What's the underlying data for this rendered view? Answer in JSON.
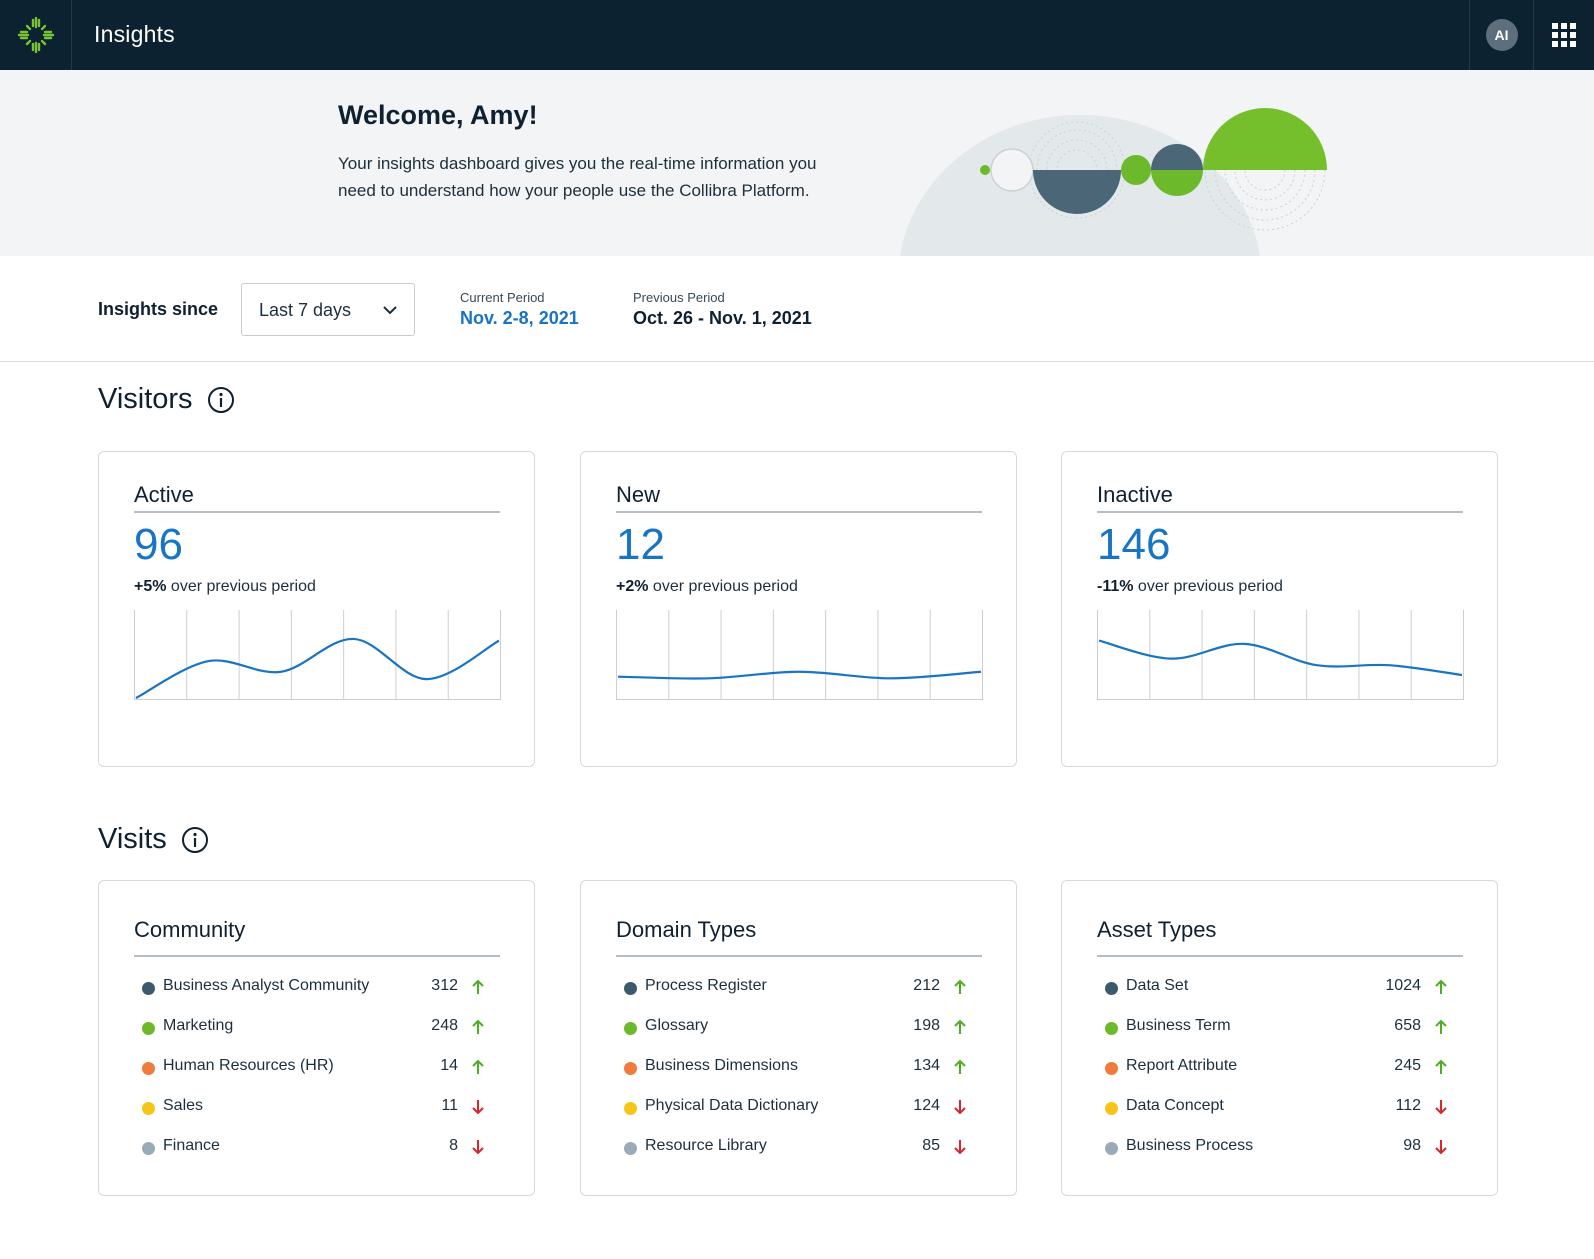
{
  "app": {
    "title": "Insights",
    "user_initials": "AI"
  },
  "banner": {
    "welcome": "Welcome, Amy!",
    "text": "Your insights dashboard gives you the real-time information you need to understand how your people use the Collibra Platform."
  },
  "filters": {
    "label": "Insights since",
    "period_select": "Last 7 days",
    "current_label": "Current Period",
    "current_value": "Nov. 2-8, 2021",
    "previous_label": "Previous Period",
    "previous_value": "Oct. 26 - Nov. 1, 2021"
  },
  "visitors": {
    "title": "Visitors",
    "cards": [
      {
        "title": "Active",
        "value": "96",
        "delta": "+5%",
        "delta_text": "over previous period"
      },
      {
        "title": "New",
        "value": "12",
        "delta": "+2%",
        "delta_text": "over previous period"
      },
      {
        "title": "Inactive",
        "value": "146",
        "delta": "-11%",
        "delta_text": "over previous period"
      }
    ]
  },
  "visits": {
    "title": "Visits",
    "cards": [
      {
        "title": "Community",
        "items": [
          {
            "label": "Business Analyst Community",
            "value": "312",
            "trend": "up",
            "color": "#3d5a6c"
          },
          {
            "label": "Marketing",
            "value": "248",
            "trend": "up",
            "color": "#6cba2b"
          },
          {
            "label": "Human Resources (HR)",
            "value": "14",
            "trend": "up",
            "color": "#ef7b3c"
          },
          {
            "label": "Sales",
            "value": "11",
            "trend": "down",
            "color": "#f5c518"
          },
          {
            "label": "Finance",
            "value": "8",
            "trend": "down",
            "color": "#9aabb8"
          }
        ]
      },
      {
        "title": "Domain Types",
        "items": [
          {
            "label": "Process Register",
            "value": "212",
            "trend": "up",
            "color": "#3d5a6c"
          },
          {
            "label": "Glossary",
            "value": "198",
            "trend": "up",
            "color": "#6cba2b"
          },
          {
            "label": "Business Dimensions",
            "value": "134",
            "trend": "up",
            "color": "#ef7b3c"
          },
          {
            "label": "Physical Data Dictionary",
            "value": "124",
            "trend": "down",
            "color": "#f5c518"
          },
          {
            "label": "Resource Library",
            "value": "85",
            "trend": "down",
            "color": "#9aabb8"
          }
        ]
      },
      {
        "title": "Asset Types",
        "items": [
          {
            "label": "Data Set",
            "value": "1024",
            "trend": "up",
            "color": "#3d5a6c"
          },
          {
            "label": "Business Term",
            "value": "658",
            "trend": "up",
            "color": "#6cba2b"
          },
          {
            "label": "Report Attribute",
            "value": "245",
            "trend": "up",
            "color": "#ef7b3c"
          },
          {
            "label": "Data Concept",
            "value": "112",
            "trend": "down",
            "color": "#f5c518"
          },
          {
            "label": "Business Process",
            "value": "98",
            "trend": "down",
            "color": "#9aabb8"
          }
        ]
      }
    ]
  },
  "colors": {
    "accent": "#1874c4",
    "up": "#4caf1f",
    "down": "#d9262c",
    "topbar": "#0d2230"
  },
  "sparklines": [
    {
      "values": [
        0,
        0.45,
        0.32,
        0.72,
        0.23,
        0.7
      ]
    },
    {
      "values": [
        0.26,
        0.24,
        0.32,
        0.24,
        0.32
      ]
    },
    {
      "values": [
        0.7,
        0.48,
        0.66,
        0.4,
        0.4,
        0.28
      ]
    }
  ]
}
